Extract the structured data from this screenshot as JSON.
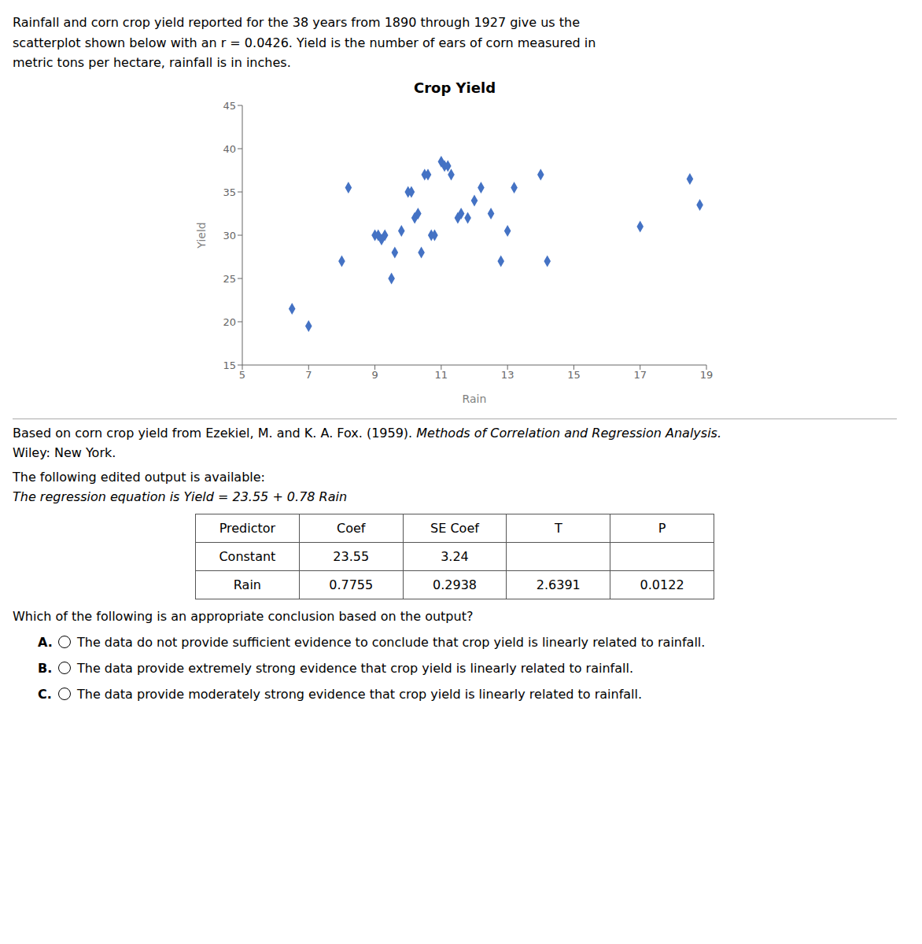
{
  "chart_data": {
    "type": "scatter",
    "title": "Crop Yield",
    "xlabel": "Rain",
    "ylabel": "Yield",
    "color": "#4472C4",
    "marker": "diamond",
    "grid": false,
    "x": [
      6.5,
      7.0,
      8.0,
      8.2,
      9.0,
      9.1,
      9.2,
      9.3,
      9.5,
      9.6,
      9.8,
      10.0,
      10.1,
      10.2,
      10.3,
      10.4,
      10.5,
      10.6,
      10.7,
      10.8,
      11.0,
      11.1,
      11.2,
      11.3,
      11.5,
      11.6,
      11.8,
      12.0,
      12.2,
      12.5,
      12.8,
      13.0,
      13.2,
      14.0,
      14.2,
      17.0,
      18.5,
      18.8
    ],
    "values": [
      21.5,
      19.5,
      27.0,
      35.5,
      30.0,
      30.0,
      29.5,
      30.0,
      25.0,
      28.0,
      30.5,
      35.0,
      35.0,
      32.0,
      32.5,
      28.0,
      37.0,
      37.0,
      30.0,
      30.0,
      38.5,
      38.0,
      38.0,
      37.0,
      32.0,
      32.5,
      32.0,
      34.0,
      35.5,
      32.5,
      27.0,
      30.5,
      35.5,
      37.0,
      27.0,
      31.0,
      36.5,
      33.5
    ],
    "xlim": [
      5,
      19
    ],
    "ylim": [
      15,
      45
    ],
    "xticks": [
      5,
      7,
      9,
      11,
      13,
      15,
      17,
      19
    ],
    "yticks": [
      15,
      20,
      25,
      30,
      35,
      40,
      45
    ],
    "annotations": [
      "Rainfall and corn crop yield reported for the 38 years from 1890 through 1927 give us the\nscatterplot shown below with an r = 0.0426. Yield is the number of ears of corn measured in\nmetric tons per hectare, rainfall is in inches.",
      "Based on corn crop yield from Ezekiel, M. and K. A. Fox. (1959). ",
      "Methods of Correlation and Regression Analysis.",
      "Wiley: New York.",
      "The following edited output is available:",
      "The regression equation is Yield = 23.55 + 0.78 Rain",
      "Which of the following is an appropriate conclusion based on the output?"
    ],
    "table": {
      "headers": [
        "Predictor",
        "Coef",
        "SE Coef",
        "T",
        "P"
      ],
      "rows": [
        [
          "Constant",
          "23.55",
          "3.24",
          null,
          null
        ],
        [
          "Rain",
          "0.7755",
          "0.2938",
          "2.6391",
          "0.0122"
        ]
      ]
    },
    "options": [
      {
        "label": "A.",
        "text": "The data do not provide sufficient evidence to conclude that crop yield is linearly related to rainfall."
      },
      {
        "label": "B.",
        "text": "The data provide extremely strong evidence that crop yield is linearly related to rainfall."
      },
      {
        "label": "C.",
        "text": "The data provide moderately strong evidence that crop yield is linearly related to rainfall."
      }
    ]
  }
}
